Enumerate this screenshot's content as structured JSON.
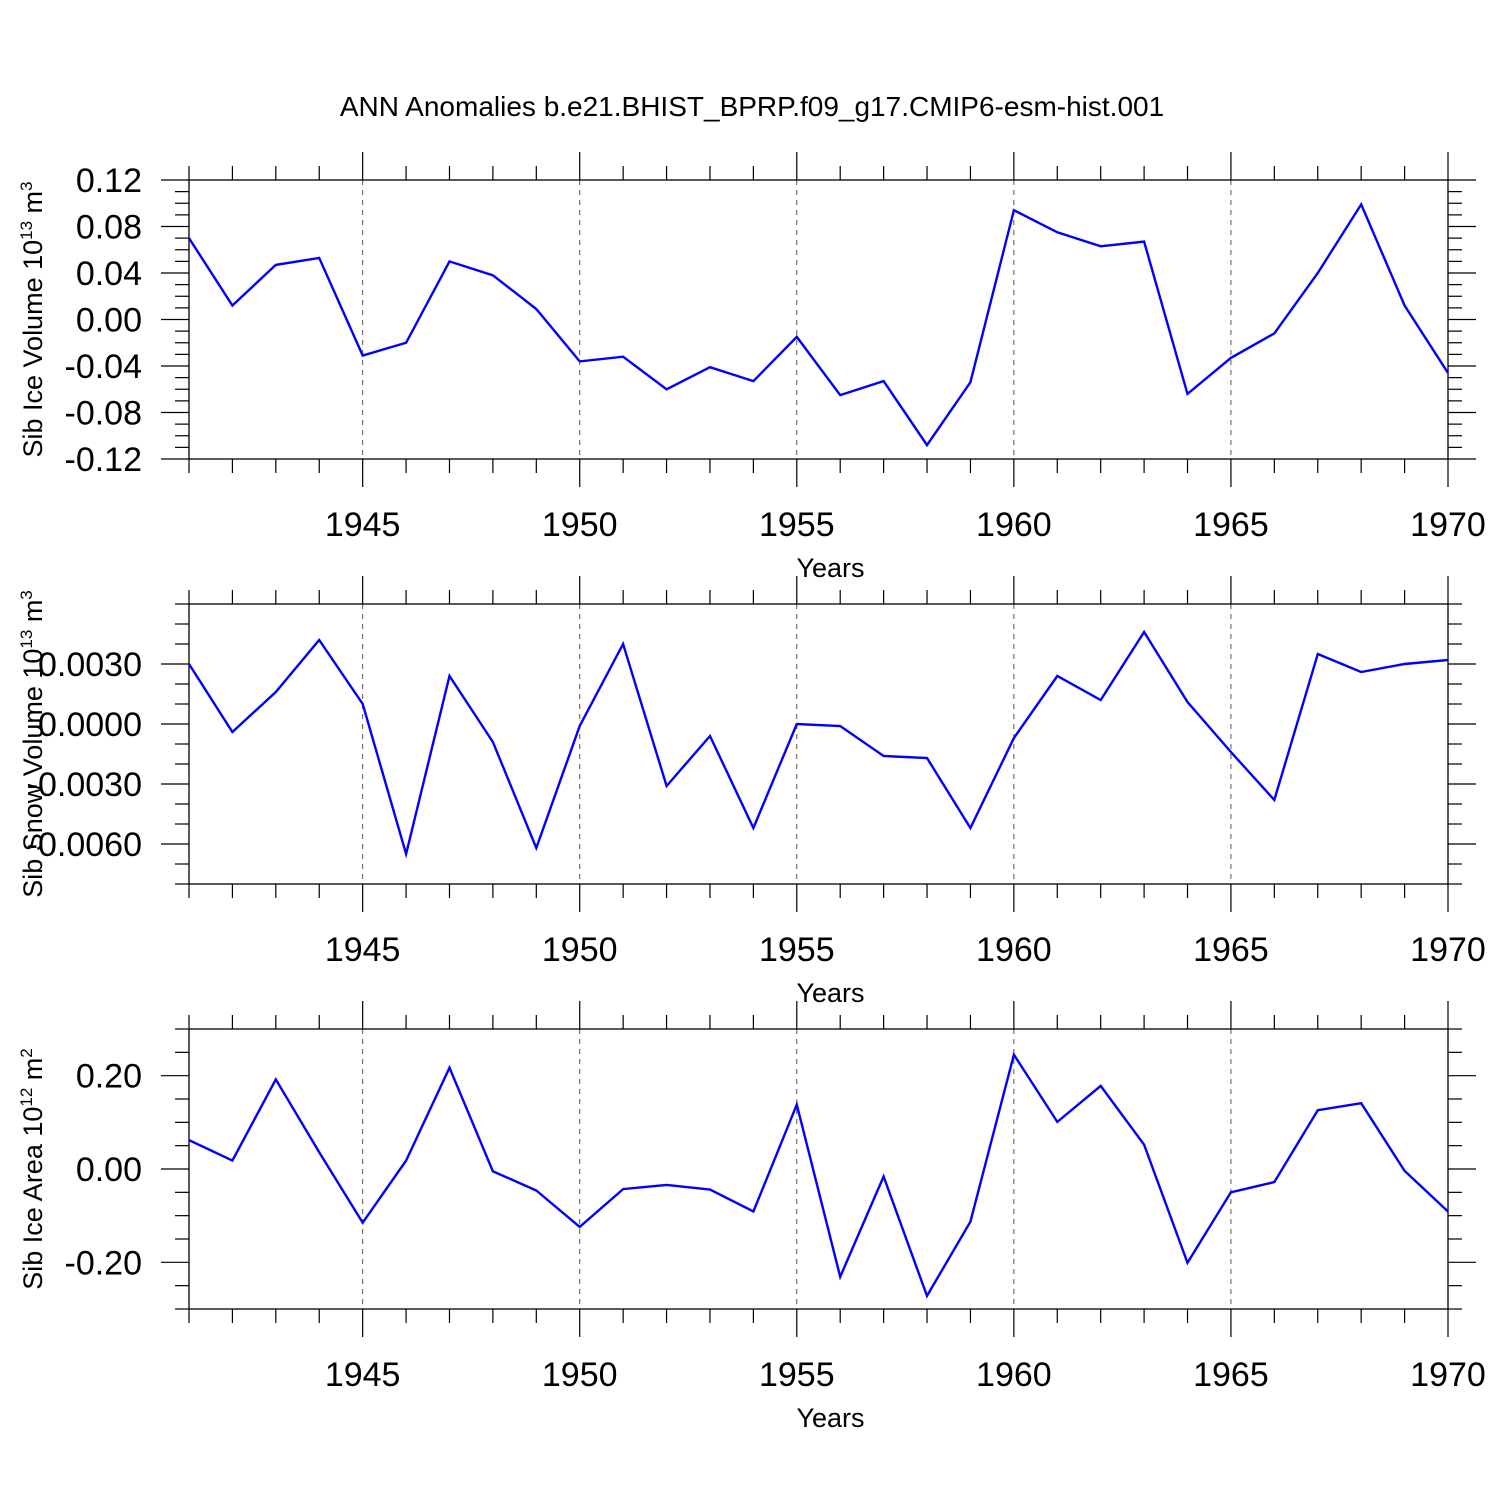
{
  "title": "ANN Anomalies b.e21.BHIST_BPRP.f09_g17.CMIP6-esm-hist.001",
  "chart_data": [
    {
      "type": "line",
      "ylabel": "Sib Ice Volume 10",
      "ylabel_exponent": "13",
      "ylabel_unit": "m",
      "ylabel_unit_exponent": "3",
      "xlabel": "Years",
      "xlim": [
        1941,
        1970
      ],
      "ylim": [
        -0.12,
        0.12
      ],
      "yticks": [
        -0.12,
        -0.08,
        -0.04,
        0.0,
        0.04,
        0.08,
        0.12
      ],
      "ytick_labels": [
        "-0.12",
        "-0.08",
        "-0.04",
        "0.00",
        "0.04",
        "0.08",
        "0.12"
      ],
      "ytick_minor_step": 0.01,
      "xticks": [
        1945,
        1950,
        1955,
        1960,
        1965,
        1970
      ],
      "xtick_labels": [
        "1945",
        "1950",
        "1955",
        "1960",
        "1965",
        "1970"
      ],
      "color": "#0000ff",
      "x": [
        1941,
        1942,
        1943,
        1944,
        1945,
        1946,
        1947,
        1948,
        1949,
        1950,
        1951,
        1952,
        1953,
        1954,
        1955,
        1956,
        1957,
        1958,
        1959,
        1960,
        1961,
        1962,
        1963,
        1964,
        1965,
        1966,
        1967,
        1968,
        1969,
        1970
      ],
      "y": [
        0.07,
        0.012,
        0.047,
        0.053,
        -0.031,
        -0.02,
        0.05,
        0.038,
        0.009,
        -0.036,
        -0.032,
        -0.06,
        -0.041,
        -0.053,
        -0.015,
        -0.065,
        -0.053,
        -0.108,
        -0.054,
        0.094,
        0.075,
        0.063,
        0.067,
        -0.064,
        -0.033,
        -0.012,
        0.04,
        0.099,
        0.012,
        -0.046
      ]
    },
    {
      "type": "line",
      "ylabel": "Sib Snow Volume 10",
      "ylabel_exponent": "13",
      "ylabel_unit": "m",
      "ylabel_unit_exponent": "3",
      "xlabel": "Years",
      "xlim": [
        1941,
        1970
      ],
      "ylim": [
        -0.008,
        0.006
      ],
      "yticks": [
        -0.006,
        -0.003,
        0.0,
        0.003
      ],
      "ytick_labels": [
        "-0.0060",
        "-0.0030",
        "0.0000",
        "0.0030"
      ],
      "ytick_minor_step": 0.001,
      "xticks": [
        1945,
        1950,
        1955,
        1960,
        1965,
        1970
      ],
      "xtick_labels": [
        "1945",
        "1950",
        "1955",
        "1960",
        "1965",
        "1970"
      ],
      "color": "#0000ff",
      "x": [
        1941,
        1942,
        1943,
        1944,
        1945,
        1946,
        1947,
        1948,
        1949,
        1950,
        1951,
        1952,
        1953,
        1954,
        1955,
        1956,
        1957,
        1958,
        1959,
        1960,
        1961,
        1962,
        1963,
        1964,
        1965,
        1966,
        1967,
        1968,
        1969,
        1970
      ],
      "y": [
        0.003,
        -0.0004,
        0.0016,
        0.0042,
        0.001,
        -0.0065,
        0.0024,
        -0.0009,
        -0.0062,
        -0.0001,
        0.004,
        -0.0031,
        -0.0006,
        -0.0052,
        -0.0,
        -0.0001,
        -0.0016,
        -0.0017,
        -0.0052,
        -0.0007,
        0.0024,
        0.0012,
        0.0046,
        0.0011,
        -0.0014,
        -0.0038,
        0.0035,
        0.0026,
        0.003,
        0.0032
      ]
    },
    {
      "type": "line",
      "ylabel": "Sib Ice Area 10",
      "ylabel_exponent": "12",
      "ylabel_unit": "m",
      "ylabel_unit_exponent": "2",
      "xlabel": "Years",
      "xlim": [
        1941,
        1970
      ],
      "ylim": [
        -0.3,
        0.3
      ],
      "yticks": [
        -0.2,
        0.0,
        0.2
      ],
      "ytick_labels": [
        "-0.20",
        "0.00",
        "0.20"
      ],
      "ytick_minor_step": 0.05,
      "xticks": [
        1945,
        1950,
        1955,
        1960,
        1965,
        1970
      ],
      "xtick_labels": [
        "1945",
        "1950",
        "1955",
        "1960",
        "1965",
        "1970"
      ],
      "color": "#0000ff",
      "x": [
        1941,
        1942,
        1943,
        1944,
        1945,
        1946,
        1947,
        1948,
        1949,
        1950,
        1951,
        1952,
        1953,
        1954,
        1955,
        1956,
        1957,
        1958,
        1959,
        1960,
        1961,
        1962,
        1963,
        1964,
        1965,
        1966,
        1967,
        1968,
        1969,
        1970
      ],
      "y": [
        0.062,
        0.018,
        0.192,
        0.036,
        -0.115,
        0.018,
        0.217,
        -0.005,
        -0.046,
        -0.124,
        -0.043,
        -0.034,
        -0.044,
        -0.091,
        0.138,
        -0.231,
        -0.016,
        -0.272,
        -0.113,
        0.245,
        0.101,
        0.178,
        0.052,
        -0.201,
        -0.05,
        -0.028,
        0.126,
        0.141,
        -0.004,
        -0.091
      ]
    }
  ]
}
